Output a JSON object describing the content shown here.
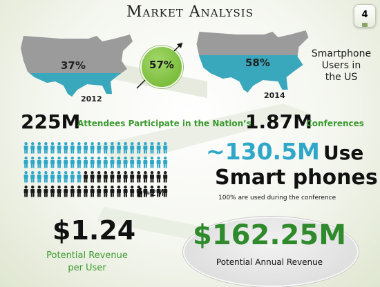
{
  "title": "Market Analysis",
  "page_number": "4",
  "map_2012": {
    "percent": "37%",
    "year": "2012"
  },
  "map_2014": {
    "percent": "58%",
    "year": "2014"
  },
  "growth_percent": "57%",
  "smartphone_label": {
    "line1": "Smartphone",
    "line2": "Users in",
    "line3": "the US"
  },
  "attendees_value": "225M",
  "attendees_text": "Attendees Participate in the Nation’s",
  "conferences_value": "1.87M",
  "conferences_text": "Conferences",
  "people_icons": {
    "total": 88,
    "highlighted": 53,
    "per_icon_label": "=2M"
  },
  "smartphone_users": {
    "value": "~130.5M",
    "use": "Use",
    "line2": "Smart phones",
    "note": "100% are used during the conference"
  },
  "revenue_per_user": {
    "value": "$1.24",
    "label_line1": "Potential Revenue",
    "label_line2": "per User"
  },
  "annual_revenue": {
    "value": "$162.25M",
    "label": "Potential Annual Revenue"
  },
  "colors": {
    "map_gray": "#9b9b9b",
    "map_fill": "#39a8bd",
    "green": "#3a9a2e",
    "person_blue": "#2fa7c9",
    "person_black": "#1a1a1a"
  }
}
